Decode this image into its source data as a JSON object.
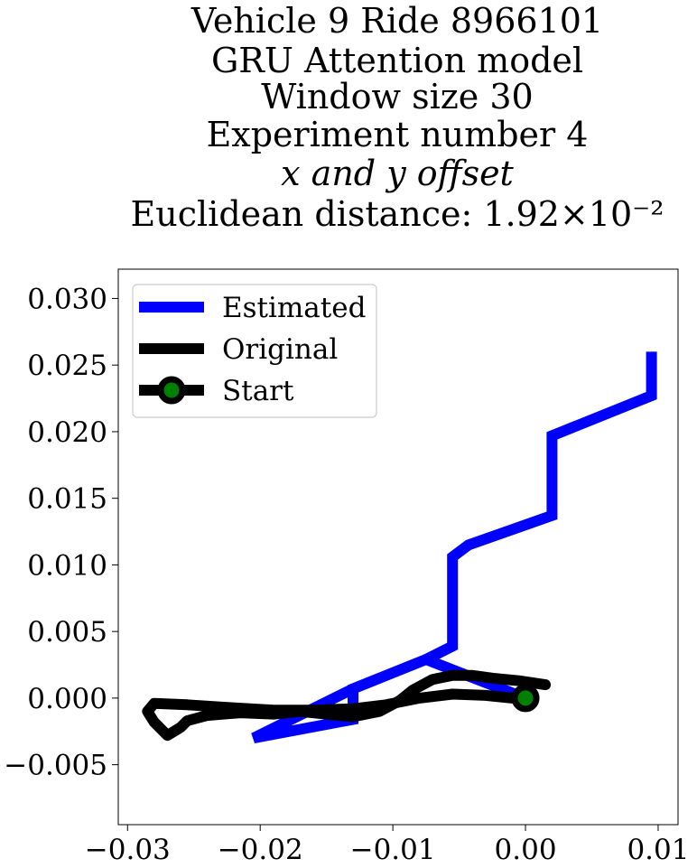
{
  "chart_data": {
    "type": "line",
    "title_lines": [
      "Vehicle 9 Ride 8966101",
      "GRU Attention model",
      "Window size 30",
      "Experiment number 4",
      "x and y offset",
      "Euclidean distance: 1.92×10⁻²"
    ],
    "xlim": [
      -0.0307,
      0.0115
    ],
    "ylim": [
      -0.0095,
      0.0322
    ],
    "xticks": [
      -0.03,
      -0.02,
      -0.01,
      0.0,
      0.01
    ],
    "xtick_labels": [
      "−0.03",
      "−0.02",
      "−0.01",
      "0.00",
      "0.01"
    ],
    "yticks": [
      -0.005,
      0.0,
      0.005,
      0.01,
      0.015,
      0.02,
      0.025,
      0.03
    ],
    "ytick_labels": [
      "−0.005",
      "0.000",
      "0.005",
      "0.010",
      "0.015",
      "0.020",
      "0.025",
      "0.030"
    ],
    "grid": false,
    "legend_position": "top-left",
    "series": [
      {
        "name": "Estimated",
        "color": "#0000ff",
        "points": [
          [
            0.0,
            0.0
          ],
          [
            -0.0075,
            0.0029
          ],
          [
            -0.0055,
            0.0039
          ],
          [
            -0.0055,
            0.0106
          ],
          [
            -0.0043,
            0.0115
          ],
          [
            0.002,
            0.0137
          ],
          [
            0.002,
            0.0197
          ],
          [
            0.0095,
            0.0227
          ],
          [
            0.0095,
            0.026
          ]
        ]
      },
      {
        "name": "Original",
        "color": "#000000",
        "points": [
          [
            0.0015,
            0.001
          ],
          [
            -0.0005,
            0.0013
          ],
          [
            -0.0025,
            0.0015
          ],
          [
            -0.004,
            0.0017
          ],
          [
            -0.0055,
            0.0017
          ],
          [
            -0.007,
            0.0014
          ],
          [
            -0.0085,
            0.0006
          ],
          [
            -0.0095,
            -0.0002
          ],
          [
            -0.011,
            -0.001
          ],
          [
            -0.013,
            -0.0014
          ],
          [
            -0.015,
            -0.0012
          ],
          [
            -0.017,
            -0.001
          ],
          [
            -0.019,
            -0.0012
          ],
          [
            -0.0215,
            -0.0011
          ],
          [
            -0.024,
            -0.0013
          ],
          [
            -0.0255,
            -0.0017
          ],
          [
            -0.026,
            -0.0022
          ],
          [
            -0.027,
            -0.0028
          ],
          [
            -0.028,
            -0.0018
          ],
          [
            -0.0285,
            -0.001
          ],
          [
            -0.028,
            -0.0004
          ],
          [
            -0.0255,
            -0.0005
          ],
          [
            -0.0225,
            -0.0007
          ],
          [
            -0.019,
            -0.0009
          ],
          [
            -0.016,
            -0.0009
          ],
          [
            -0.013,
            -0.0008
          ],
          [
            -0.0105,
            -0.0005
          ],
          [
            -0.008,
            0.0
          ],
          [
            -0.0055,
            0.0003
          ],
          [
            -0.003,
            0.0002
          ],
          [
            -0.001,
            0.0
          ],
          [
            0.0,
            0.0
          ]
        ]
      }
    ],
    "estimated_extra_segments": [
      [
        [
          -0.0075,
          0.0029
        ],
        [
          -0.013,
          0.0007
        ],
        [
          -0.013,
          -0.0016
        ],
        [
          -0.0205,
          -0.003
        ],
        [
          -0.013,
          0.0007
        ]
      ]
    ],
    "start_point": {
      "name": "Start",
      "x": 0.0,
      "y": 0.0,
      "face_color": "#008000",
      "edge_color": "#000000"
    }
  }
}
